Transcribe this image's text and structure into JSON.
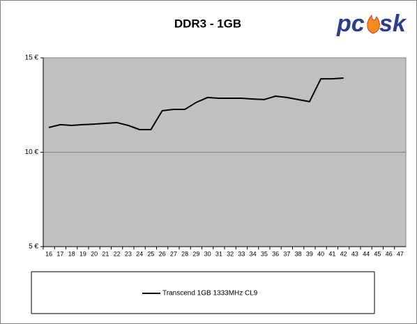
{
  "logo": {
    "left": "pc",
    "right": "sk"
  },
  "chart_data": {
    "type": "line",
    "title": "DDR3 - 1GB",
    "categories": [
      "16",
      "17",
      "18",
      "19",
      "20",
      "21",
      "22",
      "23",
      "24",
      "25",
      "26",
      "27",
      "28",
      "29",
      "30",
      "31",
      "32",
      "33",
      "34",
      "35",
      "36",
      "37",
      "38",
      "39",
      "40",
      "41",
      "42",
      "43",
      "44",
      "45",
      "46",
      "47"
    ],
    "series": [
      {
        "name": "Transcend 1GB 1333MHz CL9",
        "color": "#000000",
        "values": [
          11.31,
          11.46,
          11.42,
          11.46,
          11.49,
          11.53,
          11.57,
          11.42,
          11.2,
          11.2,
          12.2,
          12.27,
          12.27,
          12.64,
          12.9,
          12.86,
          12.86,
          12.86,
          12.82,
          12.79,
          12.97,
          12.9,
          12.79,
          12.68,
          13.89,
          13.89,
          13.93,
          null,
          null,
          null,
          null,
          null
        ]
      }
    ],
    "ylim": [
      5,
      15
    ],
    "yticks": [
      {
        "value": 5,
        "label": "5 €"
      },
      {
        "value": 10,
        "label": "10 €"
      },
      {
        "value": 15,
        "label": "15 €"
      }
    ],
    "grid": true,
    "plot_background": "#c0c0c0",
    "legend": "bottom"
  }
}
